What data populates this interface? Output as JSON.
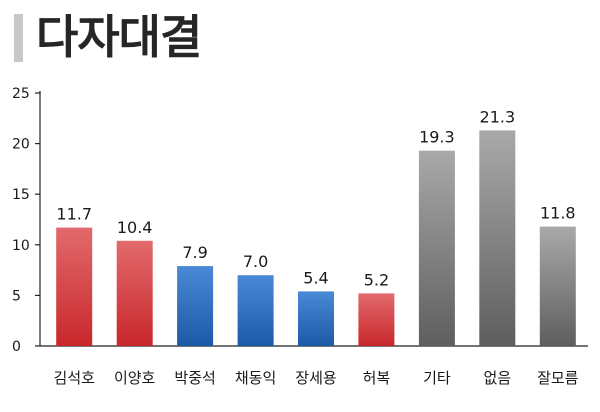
{
  "page": {
    "title": "다자대결"
  },
  "chart_data": {
    "type": "bar",
    "title": "다자대결",
    "xlabel": "",
    "ylabel": "",
    "ylim": [
      0,
      25
    ],
    "yticks": [
      0,
      5,
      10,
      15,
      20,
      25
    ],
    "grid": false,
    "legend": "none",
    "categories": [
      "김석호",
      "이양호",
      "박중석",
      "채동익",
      "장세용",
      "허복",
      "기타",
      "없음",
      "잘모름"
    ],
    "values": [
      11.7,
      10.4,
      7.9,
      7.0,
      5.4,
      5.2,
      19.3,
      21.3,
      11.8
    ],
    "value_labels": [
      "11.7",
      "10.4",
      "7.9",
      "7.0",
      "5.4",
      "5.2",
      "19.3",
      "21.3",
      "11.8"
    ],
    "bar_colors": [
      "red",
      "red",
      "blue",
      "blue",
      "blue",
      "red",
      "gray",
      "gray",
      "gray"
    ],
    "palette": {
      "red": {
        "top": "#e26a6c",
        "bottom": "#c8272b"
      },
      "blue": {
        "top": "#4a89d6",
        "bottom": "#1c5aa8"
      },
      "gray": {
        "top": "#a9a9a9",
        "bottom": "#5e5e5e"
      },
      "axis": "#222222",
      "text": "#1a1a1a"
    }
  }
}
